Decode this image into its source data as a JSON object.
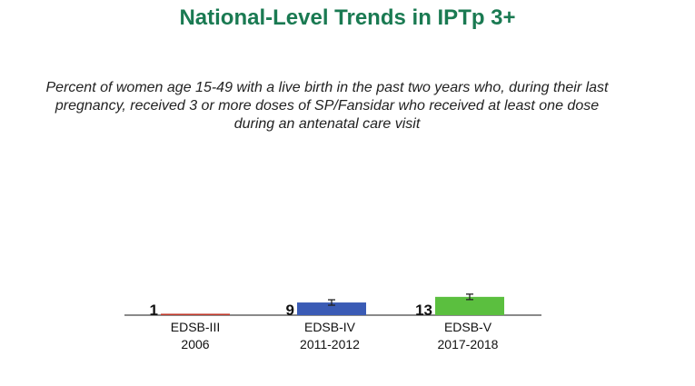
{
  "title": "National-Level Trends in IPTp 3+",
  "subtitle": "Percent of women age 15-49 with a live birth in the past two years who, during their last pregnancy, received 3 or more doses of SP/Fansidar who received at least one dose during an antenatal care visit",
  "chart_data": {
    "type": "bar",
    "categories": [
      "EDSB-III 2006",
      "EDSB-IV 2011-2012",
      "EDSB-V 2017-2018"
    ],
    "survey_names": [
      "EDSB-III",
      "EDSB-IV",
      "EDSB-V"
    ],
    "survey_years": [
      "2006",
      "2011-2012",
      "2017-2018"
    ],
    "values": [
      1,
      9,
      13
    ],
    "data_labels": [
      "1",
      "9",
      "13"
    ],
    "error_bars": true,
    "colors": [
      "#c0392b",
      "#3a5bb5",
      "#5bbf3f"
    ],
    "title": "National-Level Trends in IPTp 3+",
    "xlabel": "",
    "ylabel": "",
    "grid": false,
    "legend": "none"
  }
}
